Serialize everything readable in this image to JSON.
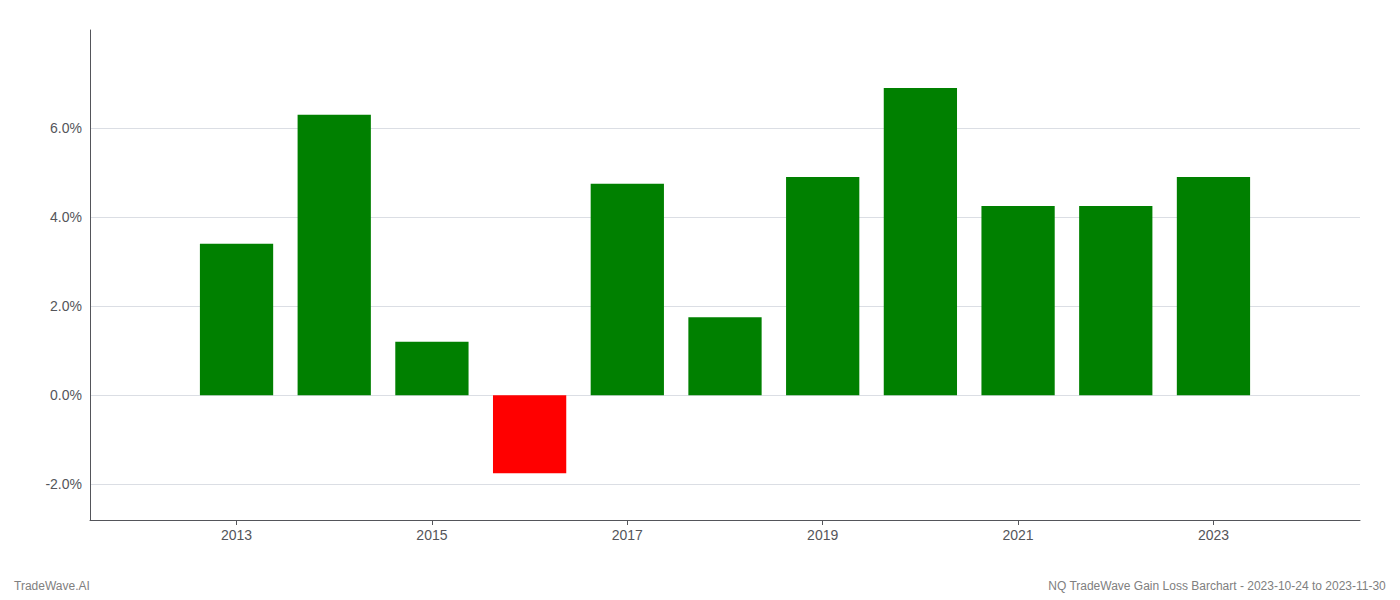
{
  "chart_data": {
    "type": "bar",
    "x": [
      2013,
      2014,
      2015,
      2016,
      2017,
      2018,
      2019,
      2020,
      2021,
      2022,
      2023
    ],
    "values": [
      0.034,
      0.063,
      0.012,
      -0.0175,
      0.0475,
      0.0175,
      0.049,
      0.069,
      0.0425,
      0.0425,
      0.049
    ],
    "colors": [
      "#008000",
      "#008000",
      "#008000",
      "#ff0000",
      "#008000",
      "#008000",
      "#008000",
      "#008000",
      "#008000",
      "#008000",
      "#008000"
    ],
    "xlim": [
      2011.5,
      2024.5
    ],
    "xticks": [
      2013,
      2015,
      2017,
      2019,
      2021,
      2023
    ],
    "ylim": [
      -0.028,
      0.082
    ],
    "yticks": [
      {
        "value": -0.02,
        "label": "-2.0%"
      },
      {
        "value": 0.0,
        "label": "0.0%"
      },
      {
        "value": 0.02,
        "label": "2.0%"
      },
      {
        "value": 0.04,
        "label": "4.0%"
      },
      {
        "value": 0.06,
        "label": "6.0%"
      }
    ],
    "grid": true,
    "annotations": [
      "TradeWave.AI",
      "NQ TradeWave Gain Loss Barchart - 2023-10-24 to 2023-11-30"
    ]
  }
}
